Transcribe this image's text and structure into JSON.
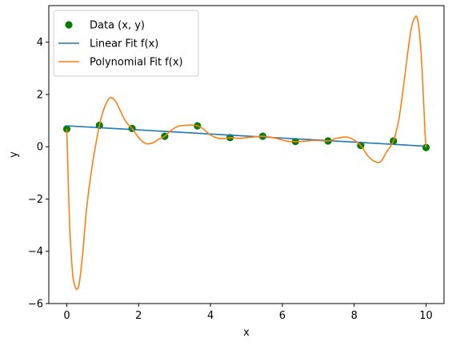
{
  "chart_data": {
    "type": "scatter",
    "xlabel": "x",
    "ylabel": "y",
    "xlim": [
      -0.5,
      10.5
    ],
    "ylim": [
      -6,
      5.4
    ],
    "xticks": [
      0,
      2,
      4,
      6,
      8,
      10
    ],
    "yticks": [
      -6,
      -4,
      -2,
      0,
      2,
      4
    ],
    "ytick_labels": [
      "−6",
      "−4",
      "−2",
      "0",
      "2",
      "4"
    ],
    "grid": false,
    "legend_position": "top-left",
    "series": [
      {
        "name": "Data (x, y)",
        "kind": "scatter",
        "color": "#008000",
        "x": [
          0.0,
          0.909,
          1.818,
          2.727,
          3.636,
          4.545,
          5.455,
          6.364,
          7.273,
          8.182,
          9.091,
          10.0
        ],
        "y": [
          0.68,
          0.82,
          0.7,
          0.4,
          0.8,
          0.35,
          0.4,
          0.2,
          0.22,
          0.05,
          0.22,
          -0.03
        ]
      },
      {
        "name": "Linear Fit f(x)",
        "kind": "line",
        "color": "#1f77b4",
        "x": [
          0,
          10
        ],
        "y": [
          0.8,
          0.02
        ]
      },
      {
        "name": "Polynomial Fit f(x)",
        "kind": "line",
        "color": "#ff7f0e",
        "x": [
          0.0,
          0.08,
          0.16,
          0.22,
          0.28,
          0.35,
          0.45,
          0.55,
          0.7,
          0.909,
          1.05,
          1.2,
          1.35,
          1.5,
          1.65,
          1.818,
          2.0,
          2.2,
          2.4,
          2.55,
          2.727,
          2.9,
          3.1,
          3.3,
          3.5,
          3.636,
          3.8,
          4.0,
          4.2,
          4.4,
          4.545,
          4.8,
          5.1,
          5.455,
          5.8,
          6.1,
          6.364,
          6.6,
          6.9,
          7.273,
          7.5,
          7.8,
          8.0,
          8.182,
          8.4,
          8.6,
          8.75,
          8.9,
          9.091,
          9.25,
          9.4,
          9.5,
          9.6,
          9.7,
          9.76,
          9.82,
          9.88,
          9.93,
          9.97,
          10.0
        ],
        "y": [
          0.68,
          -3.0,
          -4.8,
          -5.3,
          -5.45,
          -5.2,
          -4.0,
          -2.4,
          -0.8,
          0.82,
          1.5,
          1.87,
          1.75,
          1.35,
          0.95,
          0.7,
          0.35,
          0.12,
          0.15,
          0.28,
          0.4,
          0.62,
          0.78,
          0.82,
          0.83,
          0.8,
          0.68,
          0.45,
          0.33,
          0.31,
          0.35,
          0.32,
          0.36,
          0.4,
          0.33,
          0.22,
          0.2,
          0.21,
          0.24,
          0.22,
          0.32,
          0.37,
          0.25,
          0.05,
          -0.38,
          -0.58,
          -0.55,
          -0.2,
          0.22,
          1.1,
          2.6,
          3.7,
          4.6,
          4.97,
          4.9,
          4.3,
          3.2,
          1.8,
          0.6,
          -0.03
        ]
      }
    ]
  },
  "legend": {
    "entries": [
      {
        "label": "Data (x, y)",
        "kind": "marker",
        "color": "#008000"
      },
      {
        "label": "Linear Fit f(x)",
        "kind": "line",
        "color": "#1f77b4"
      },
      {
        "label": "Polynomial Fit f(x)",
        "kind": "line",
        "color": "#ff7f0e"
      }
    ]
  }
}
